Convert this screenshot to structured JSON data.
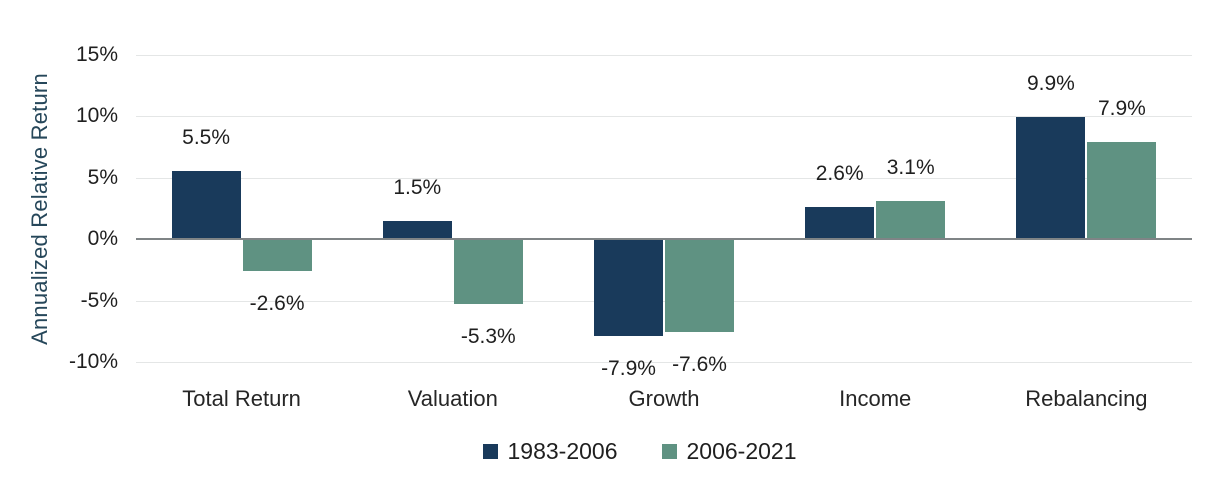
{
  "chart_data": {
    "type": "bar",
    "title": "",
    "xlabel": "",
    "ylabel": "Annualized Relative Return",
    "categories": [
      "Total Return",
      "Valuation",
      "Growth",
      "Income",
      "Rebalancing"
    ],
    "series": [
      {
        "name": "1983-2006",
        "color": "#193A5B",
        "values": [
          5.5,
          1.5,
          -7.9,
          2.6,
          9.9
        ],
        "labels": [
          "5.5%",
          "1.5%",
          "-7.9%",
          "2.6%",
          "9.9%"
        ]
      },
      {
        "name": "2006-2021",
        "color": "#5F9282",
        "values": [
          -2.6,
          -5.3,
          -7.6,
          3.1,
          7.9
        ],
        "labels": [
          "-2.6%",
          "-5.3%",
          "-7.6%",
          "3.1%",
          "7.9%"
        ]
      }
    ],
    "ytick_values": [
      15,
      10,
      5,
      0,
      -5,
      -10
    ],
    "ytick_labels": [
      "15%",
      "10%",
      "5%",
      "0%",
      "-5%",
      "-10%"
    ],
    "ylim": [
      -12.5,
      16
    ],
    "grid": true,
    "legend_position": "bottom",
    "colors": {
      "grid_line": "#E4E6E6",
      "zero_line": "#7F8486",
      "tick_text": "#1F1F1F",
      "category_text": "#262626",
      "value_label_text": "#1F1F1F",
      "axis_title_text": "#26475A",
      "background": "#FFFFFF"
    }
  }
}
